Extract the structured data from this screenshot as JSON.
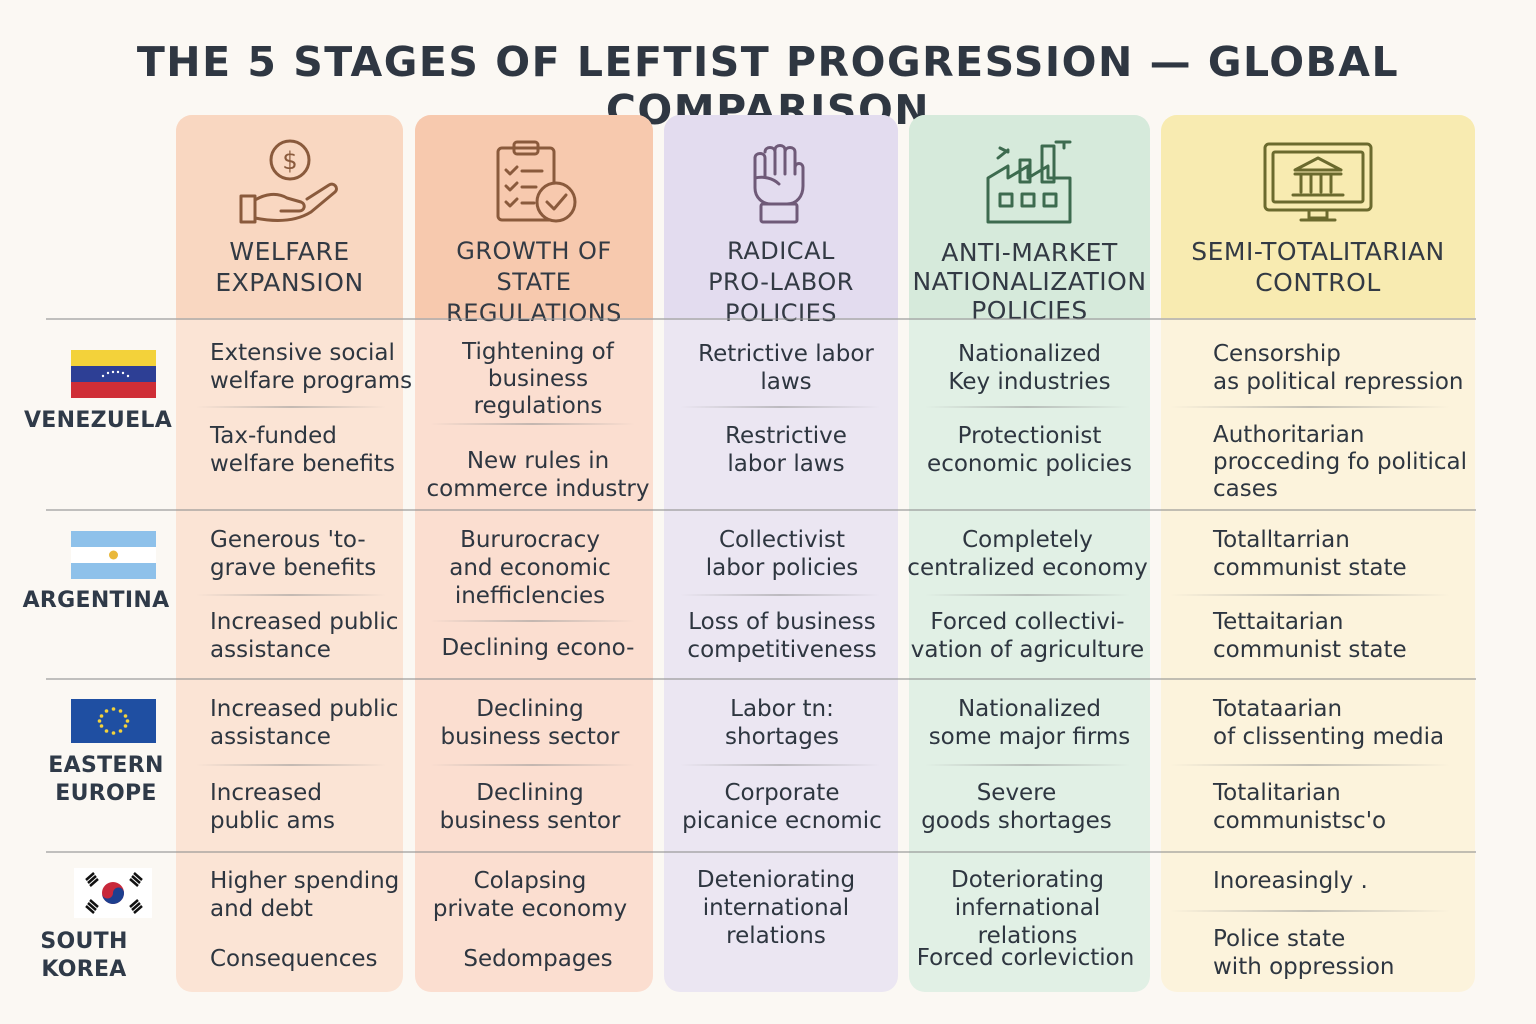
{
  "title": "THE 5 STAGES OF LEFTIST PROGRESSION — GLOBAL COMPARISON",
  "stages": [
    {
      "label": "WELFARE\nEXPANSION",
      "icon": "hand-coin-icon",
      "color": "#f9d7c1"
    },
    {
      "label": "GROWTH OF\nSTATE REGULATIONS",
      "icon": "clipboard-check-icon",
      "color": "#f7c9ae"
    },
    {
      "label": "RADICAL\nPRO-LABOR POLICIES",
      "icon": "raised-fist-icon",
      "color": "#e3dcef"
    },
    {
      "label": "ANTI-MARKET\nNATIONALIZATION\nPOLICIES",
      "icon": "factory-icon",
      "color": "#d6eadb"
    },
    {
      "label": "SEMI-TOTALITARIAN\nCONTROL",
      "icon": "government-building-screen-icon",
      "color": "#f8ebb1"
    }
  ],
  "countries": [
    {
      "name": "VENEZUELA",
      "flag": "venezuela-flag-icon",
      "cells": [
        [
          "Extensive social\nwelfare programs",
          "Tax-funded\nwelfare benefits"
        ],
        [
          "Tightening of\nbusiness\nregulations",
          "New rules in\ncommerce industry"
        ],
        [
          "Retrictive labor\nlaws",
          "Restrictive\nlabor laws"
        ],
        [
          "Nationalized\nKey industries",
          "Protectionist\neconomic policies"
        ],
        [
          "Censorship\nas political repression",
          "Authoritarian\nprocceding fo political\ncases"
        ]
      ]
    },
    {
      "name": "ARGENTINA",
      "flag": "argentina-flag-icon",
      "cells": [
        [
          "Generous 'to-\ngrave benefits",
          "Increased public\nassistance"
        ],
        [
          "Bururocracy\nand economic\ninefficlencies",
          "Declining econo-"
        ],
        [
          "Collectivist\nlabor policies",
          "Loss of business\ncompetitiveness"
        ],
        [
          "Completely\ncentralized economy",
          "Forced collectivi-\nvation of agriculture"
        ],
        [
          "Totalltarrian\ncommunist state",
          "Tettaitarian\ncommunist state"
        ]
      ]
    },
    {
      "name": "EASTERN\nEUROPE",
      "flag": "eu-flag-icon",
      "cells": [
        [
          "Increased public\nassistance",
          "Increased\npublic ams"
        ],
        [
          "Declining\nbusiness sector",
          "Declining\nbusiness sentor"
        ],
        [
          "Labor  tn:\nshortages",
          "Corporate\npicanice ecnomic"
        ],
        [
          "Nationalized\nsome major firms",
          "Severe\ngoods shortages"
        ],
        [
          "Totataarian\nof clissenting media",
          "Totalitarian\ncommunistsc'o"
        ]
      ]
    },
    {
      "name": "SOUTH KOREA",
      "flag": "south-korea-flag-icon",
      "cells": [
        [
          "Higher spending\nand debt",
          "Consequences"
        ],
        [
          "Colapsing\nprivate economy",
          "Sedompages"
        ],
        [
          "Deteniorating\ninternational\nrelations",
          ""
        ],
        [
          "Doteriorating\ninfernational relations",
          "Forced corleviction"
        ],
        [
          "Inoreasingly .",
          "Police state\nwith oppression"
        ]
      ]
    }
  ]
}
